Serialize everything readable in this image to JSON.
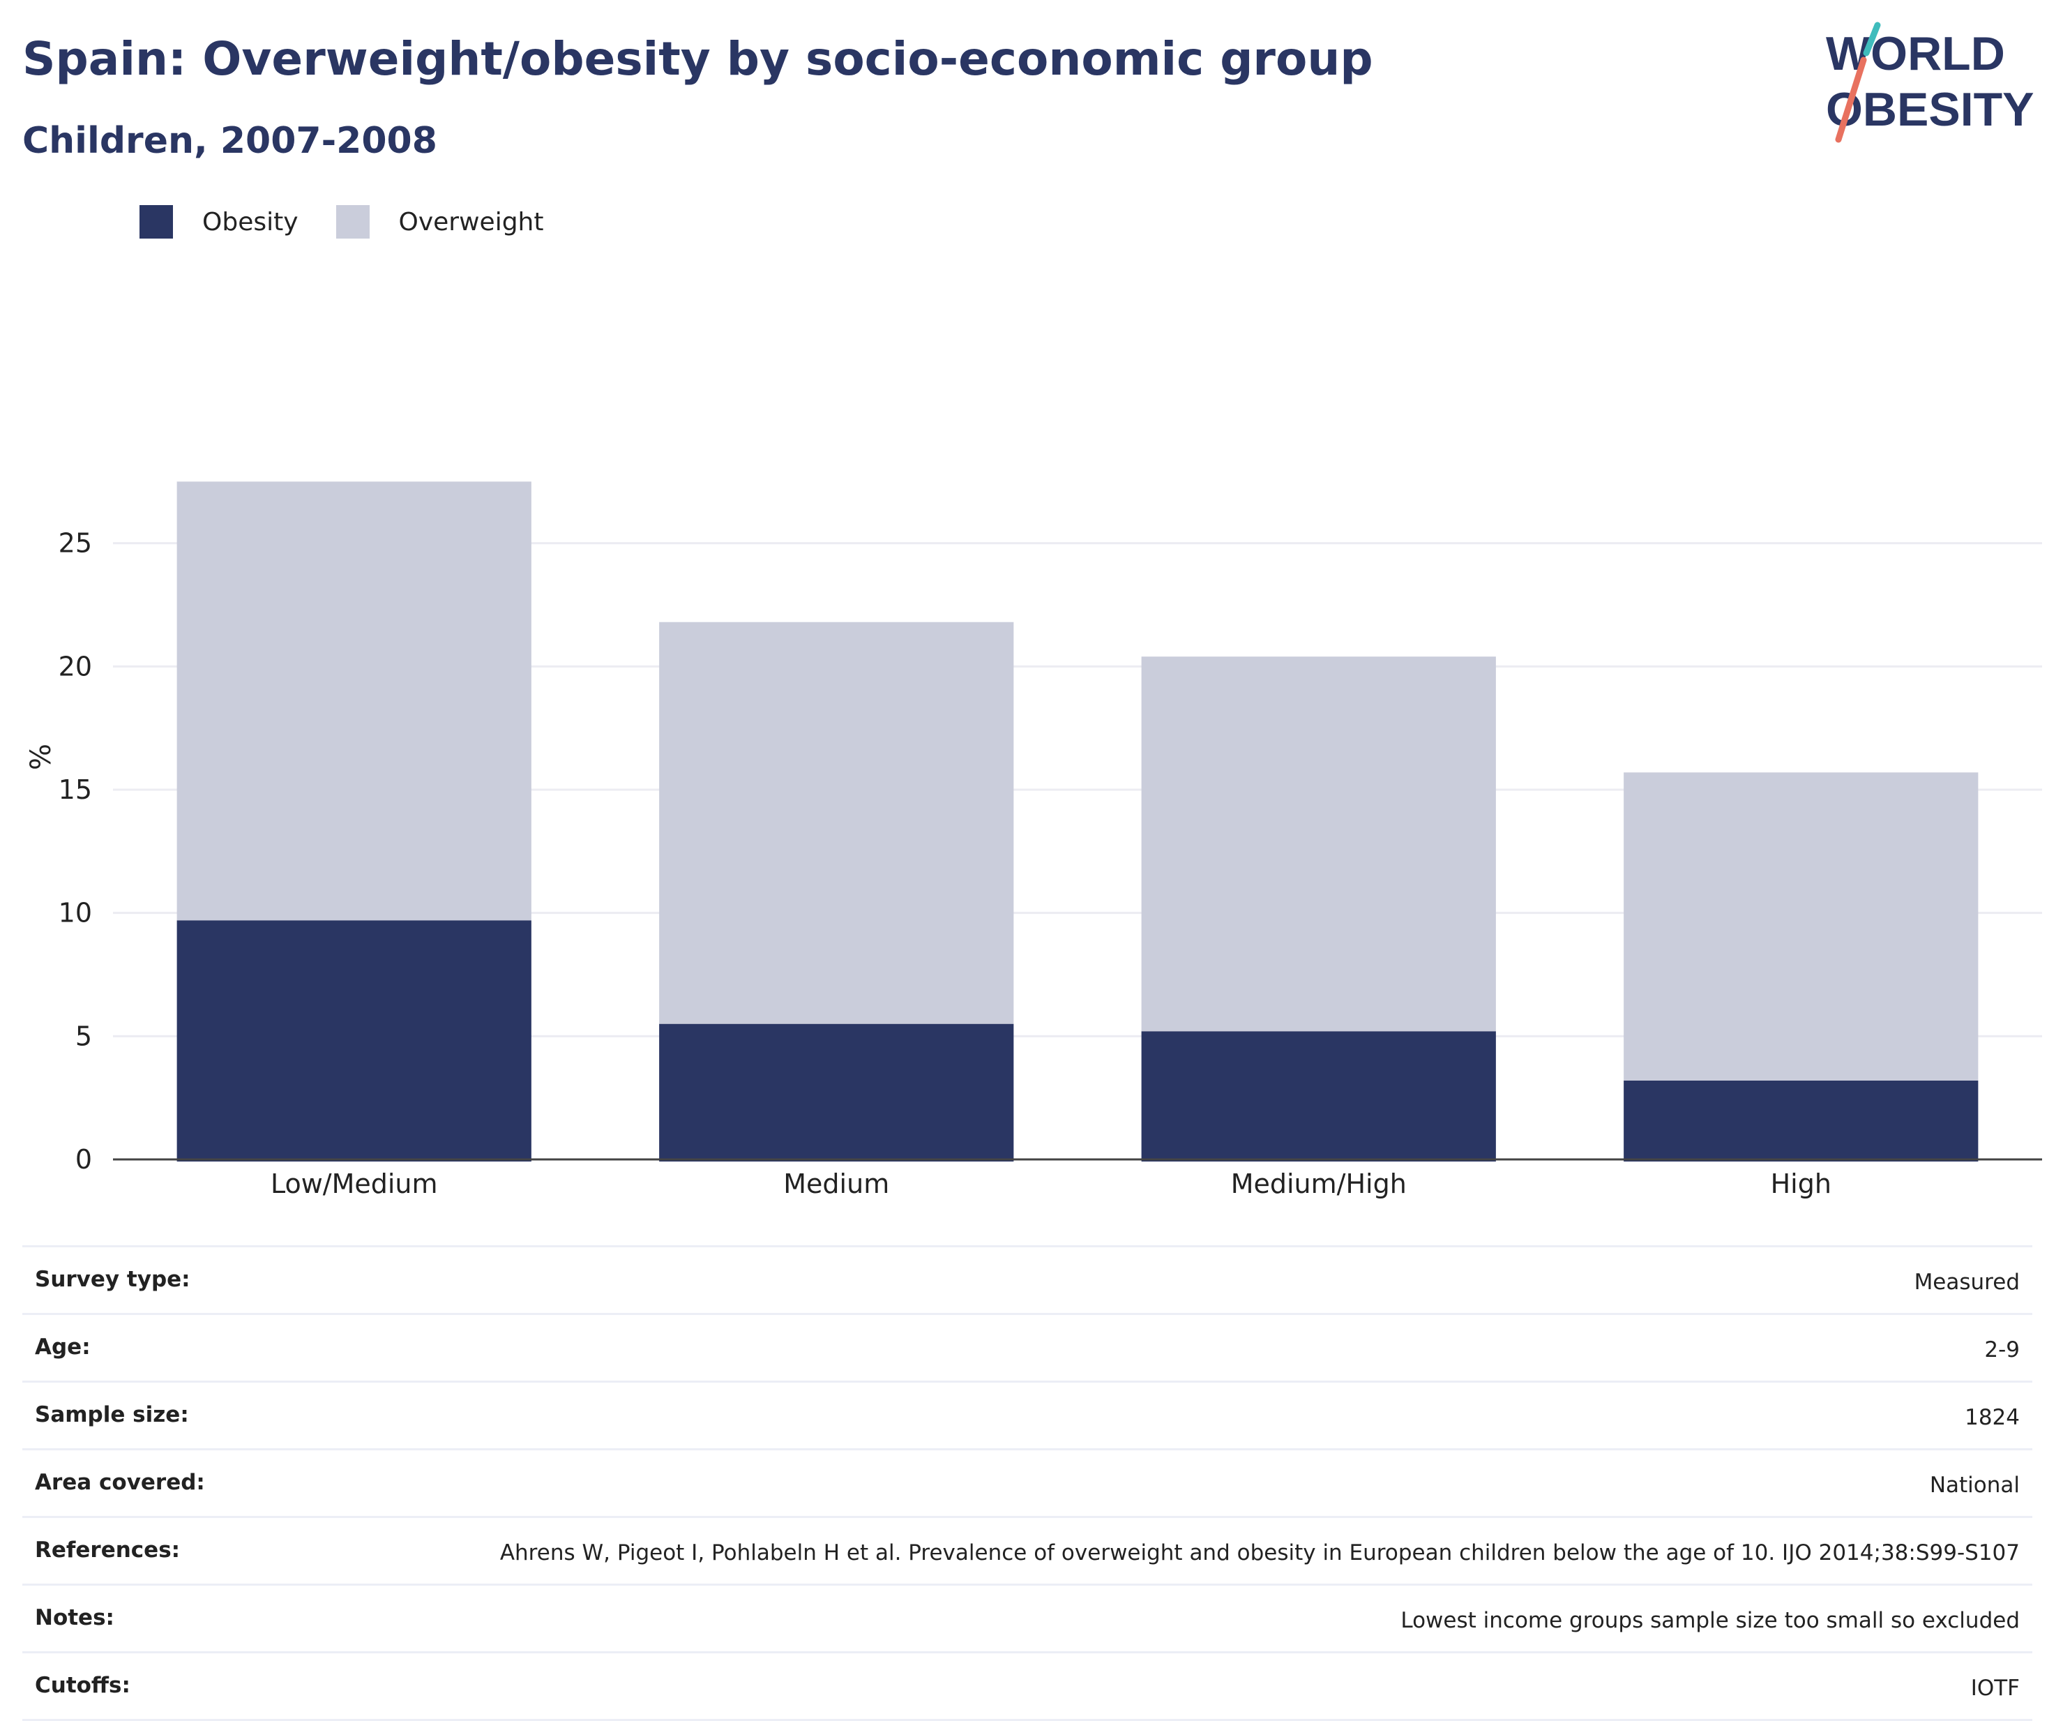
{
  "header": {
    "title": "Spain: Overweight/obesity by socio-economic group",
    "subtitle": "Children, 2007-2008"
  },
  "logo": {
    "line1": "WORLD",
    "line2": "OBESITY"
  },
  "colors": {
    "obesity": "#2a3663",
    "overweight": "#cacddb",
    "text": "#2a3663",
    "grid": "#ececf2",
    "accent_teal": "#3fbcbc",
    "accent_coral": "#e8715f"
  },
  "chart_data": {
    "type": "bar",
    "stacked": true,
    "categories": [
      "Low/Medium",
      "Medium",
      "Medium/High",
      "High"
    ],
    "series": [
      {
        "name": "Obesity",
        "values": [
          9.7,
          5.5,
          5.2,
          3.2
        ]
      },
      {
        "name": "Overweight",
        "values": [
          17.8,
          16.3,
          15.2,
          12.5
        ]
      }
    ],
    "ylabel": "%",
    "ylim": [
      0,
      30
    ],
    "yticks": [
      0,
      5,
      10,
      15,
      20,
      25
    ],
    "grid": true,
    "legend_position": "top-left"
  },
  "info": [
    {
      "label": "Survey type:",
      "value": "Measured"
    },
    {
      "label": "Age:",
      "value": "2-9"
    },
    {
      "label": "Sample size:",
      "value": "1824"
    },
    {
      "label": "Area covered:",
      "value": "National"
    },
    {
      "label": "References:",
      "value": "Ahrens W, Pigeot I, Pohlabeln H et al. Prevalence of overweight and obesity in European children below the age of 10. IJO 2014;38:S99-S107"
    },
    {
      "label": "Notes:",
      "value": "Lowest income groups sample size too small so excluded"
    },
    {
      "label": "Cutoffs:",
      "value": "IOTF"
    }
  ]
}
